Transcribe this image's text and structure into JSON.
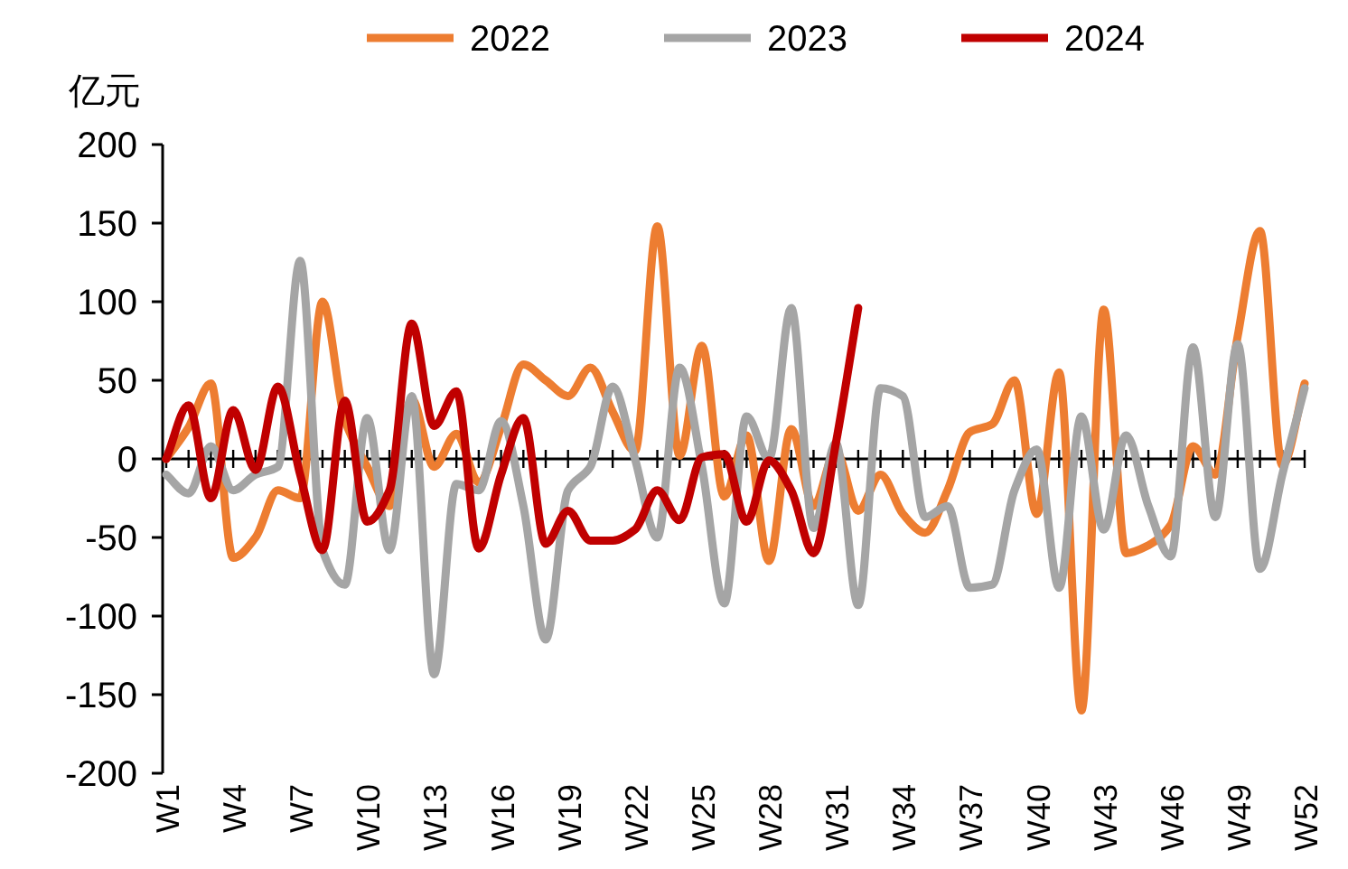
{
  "chart_data": {
    "type": "line",
    "ylabel": "亿元",
    "categories": [
      "W1",
      null,
      null,
      "W4",
      null,
      null,
      "W7",
      null,
      null,
      "W10",
      null,
      null,
      "W13",
      null,
      null,
      "W16",
      null,
      null,
      "W19",
      null,
      null,
      "W22",
      null,
      null,
      "W25",
      null,
      null,
      "W28",
      null,
      null,
      "W31",
      null,
      null,
      "W34",
      null,
      null,
      "W37",
      null,
      null,
      "W40",
      null,
      null,
      "W43",
      null,
      null,
      "W46",
      null,
      null,
      "W49",
      null,
      null,
      "W52"
    ],
    "series": [
      {
        "name": "2022",
        "color": "#ed7d31",
        "values": [
          0,
          20,
          48,
          -63,
          -50,
          -20,
          -25,
          100,
          25,
          -5,
          -30,
          38,
          -5,
          16,
          -15,
          20,
          60,
          50,
          40,
          58,
          30,
          5,
          148,
          2,
          72,
          -24,
          15,
          -65,
          19,
          -30,
          5,
          -33,
          -10,
          -35,
          -47,
          -20,
          17,
          22,
          50,
          -35,
          55,
          -160,
          95,
          -60,
          -55,
          -42,
          8,
          -10,
          78,
          145,
          -4,
          48
        ]
      },
      {
        "name": "2023",
        "color": "#a5a5a5",
        "values": [
          -10,
          -22,
          8,
          -20,
          -10,
          -5,
          126,
          -58,
          -80,
          26,
          -58,
          40,
          -137,
          -16,
          -20,
          24,
          -30,
          -115,
          -20,
          -5,
          46,
          0,
          -50,
          58,
          -5,
          -92,
          27,
          0,
          96,
          -44,
          10,
          -93,
          45,
          40,
          -37,
          -30,
          -82,
          -80,
          -20,
          6,
          -82,
          27,
          -45,
          15,
          -30,
          -62,
          71,
          -37,
          73,
          -70,
          -10,
          45
        ]
      },
      {
        "name": "2024",
        "color": "#c00000",
        "values": [
          0,
          34,
          -25,
          31,
          -7,
          46,
          -10,
          -58,
          37,
          -40,
          -20,
          86,
          21,
          43,
          -57,
          -10,
          26,
          -54,
          -33,
          -52,
          -52,
          -45,
          -20,
          -39,
          1,
          3,
          -40,
          -1,
          -20,
          -60,
          10,
          96,
          null,
          null,
          null,
          null,
          null,
          null,
          null,
          null,
          null,
          null,
          null,
          null,
          null,
          null,
          null,
          null,
          null,
          null,
          null,
          null
        ]
      }
    ],
    "ylim": [
      -200,
      200
    ],
    "yticks": [
      -200,
      -150,
      -100,
      -50,
      0,
      50,
      100,
      150,
      200
    ],
    "legend": "top"
  }
}
